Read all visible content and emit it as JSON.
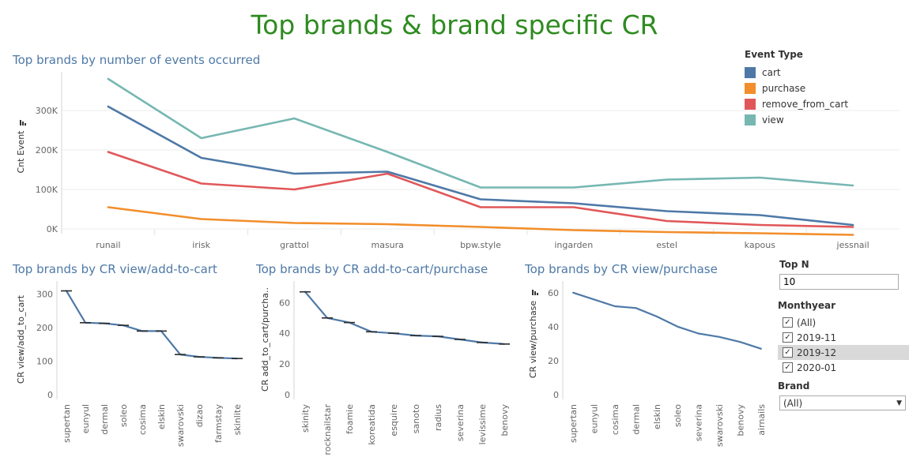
{
  "dashboard": {
    "title": "Top brands & brand specific CR"
  },
  "legend": {
    "title": "Event Type",
    "items": [
      {
        "label": "cart",
        "color": "#4e79a7"
      },
      {
        "label": "purchase",
        "color": "#f28e2b"
      },
      {
        "label": "remove_from_cart",
        "color": "#e15759"
      },
      {
        "label": "view",
        "color": "#76b7b2"
      }
    ]
  },
  "filters": {
    "topn_label": "Top N",
    "topn_value": "10",
    "monthyear_label": "Monthyear",
    "monthyear_options": [
      "(All)",
      "2019-11",
      "2019-12",
      "2020-01"
    ],
    "brand_label": "Brand",
    "brand_value": "(All)"
  },
  "chart_data": [
    {
      "type": "line",
      "title": "Top brands by number of events occurred",
      "ylabel": "Cnt Event",
      "xlabel": "",
      "categories": [
        "runail",
        "irisk",
        "grattol",
        "masura",
        "bpw.style",
        "ingarden",
        "estel",
        "kapous",
        "jessnail"
      ],
      "ylim": [
        0,
        390000
      ],
      "yticks": [
        0,
        100000,
        200000,
        300000
      ],
      "ytick_labels": [
        "0K",
        "100K",
        "200K",
        "300K"
      ],
      "series": [
        {
          "name": "cart",
          "color": "#4e79a7",
          "values": [
            310000,
            180000,
            140000,
            145000,
            75000,
            65000,
            45000,
            35000,
            10000
          ]
        },
        {
          "name": "purchase",
          "color": "#f28e2b",
          "values": [
            55000,
            25000,
            15000,
            12000,
            5000,
            -3000,
            -8000,
            -11000,
            -15000
          ]
        },
        {
          "name": "remove_from_cart",
          "color": "#e15759",
          "values": [
            195000,
            115000,
            100000,
            140000,
            55000,
            55000,
            20000,
            10000,
            5000
          ]
        },
        {
          "name": "view",
          "color": "#76b7b2",
          "values": [
            380000,
            230000,
            280000,
            195000,
            105000,
            105000,
            125000,
            130000,
            110000
          ]
        }
      ]
    },
    {
      "type": "line",
      "title": "Top brands by CR view/add-to-cart",
      "ylabel": "CR view/add_to_cart",
      "xlabel": "",
      "categories": [
        "supertan",
        "eunyul",
        "dermal",
        "soleo",
        "cosima",
        "elskin",
        "swarovski",
        "dizao",
        "farmstay",
        "skinlite"
      ],
      "ylim": [
        0,
        330
      ],
      "yticks": [
        0,
        100,
        200,
        300
      ],
      "ytick_labels": [
        "0",
        "100",
        "200",
        "300"
      ],
      "values": [
        310,
        215,
        213,
        207,
        190,
        190,
        120,
        113,
        110,
        108
      ]
    },
    {
      "type": "line",
      "title": "Top brands by CR add-to-cart/purchase",
      "ylabel": "CR add_to_cart/purcha..",
      "xlabel": "",
      "categories": [
        "skinity",
        "rocknailstar",
        "foamie",
        "koreatida",
        "esquire",
        "sanoto",
        "radius",
        "severina",
        "levissime",
        "benovy"
      ],
      "ylim": [
        0,
        72
      ],
      "yticks": [
        0,
        20,
        40,
        60
      ],
      "ytick_labels": [
        "0",
        "20",
        "40",
        "60"
      ],
      "values": [
        67,
        50,
        47,
        41,
        40,
        38.5,
        38,
        36,
        34,
        33
      ]
    },
    {
      "type": "line",
      "title": "Top brands by CR view/purchase",
      "ylabel": "CR view/purchase",
      "xlabel": "",
      "categories": [
        "supertan",
        "eunyul",
        "cosima",
        "dermal",
        "elskin",
        "soleo",
        "severina",
        "swarovski",
        "benovy",
        "airnails"
      ],
      "ylim": [
        0,
        65
      ],
      "yticks": [
        0,
        20,
        40,
        60
      ],
      "ytick_labels": [
        "0",
        "20",
        "40",
        "60"
      ],
      "values": [
        60,
        56,
        52,
        51,
        46,
        40,
        36,
        34,
        31,
        27
      ]
    }
  ]
}
